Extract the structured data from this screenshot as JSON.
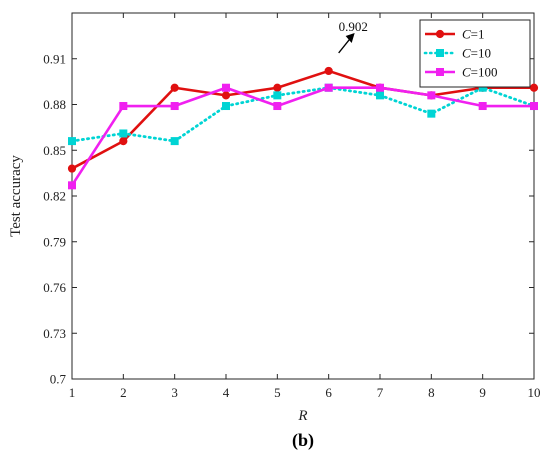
{
  "chart_data": {
    "type": "line",
    "xlabel": "R",
    "ylabel": "Test accuracy",
    "xlim": [
      1,
      10
    ],
    "ylim": [
      0.7,
      0.94
    ],
    "x": [
      1,
      2,
      3,
      4,
      5,
      6,
      7,
      8,
      9,
      10
    ],
    "x_ticks": [
      "1",
      "2",
      "3",
      "4",
      "5",
      "6",
      "7",
      "8",
      "9",
      "10"
    ],
    "y_ticks": [
      0.7,
      0.73,
      0.76,
      0.79,
      0.82,
      0.85,
      0.88,
      0.91
    ],
    "y_tick_labels": [
      "0.7",
      "0.73",
      "0.76",
      "0.79",
      "0.82",
      "0.85",
      "0.88",
      "0.91"
    ],
    "grid": false,
    "legend_position": "top-right",
    "series": [
      {
        "name_italic": "C",
        "name_rest": "=1",
        "color": "#e01010",
        "line_style": "solid",
        "marker": "circle",
        "values": [
          0.838,
          0.856,
          0.891,
          0.886,
          0.891,
          0.902,
          0.891,
          0.886,
          0.891,
          0.891
        ]
      },
      {
        "name_italic": "C",
        "name_rest": "=10",
        "color": "#00d4d4",
        "line_style": "dotted",
        "marker": "square",
        "values": [
          0.856,
          0.861,
          0.856,
          0.879,
          0.886,
          0.891,
          0.886,
          0.874,
          0.891,
          0.879
        ]
      },
      {
        "name_italic": "C",
        "name_rest": "=100",
        "color": "#f020f0",
        "line_style": "solid",
        "marker": "square",
        "values": [
          0.827,
          0.879,
          0.879,
          0.891,
          0.879,
          0.891,
          0.891,
          0.886,
          0.879,
          0.879
        ]
      }
    ],
    "annotations": [
      {
        "text": "0.902",
        "x": 6,
        "y": 0.902
      }
    ],
    "caption": "(b)"
  }
}
